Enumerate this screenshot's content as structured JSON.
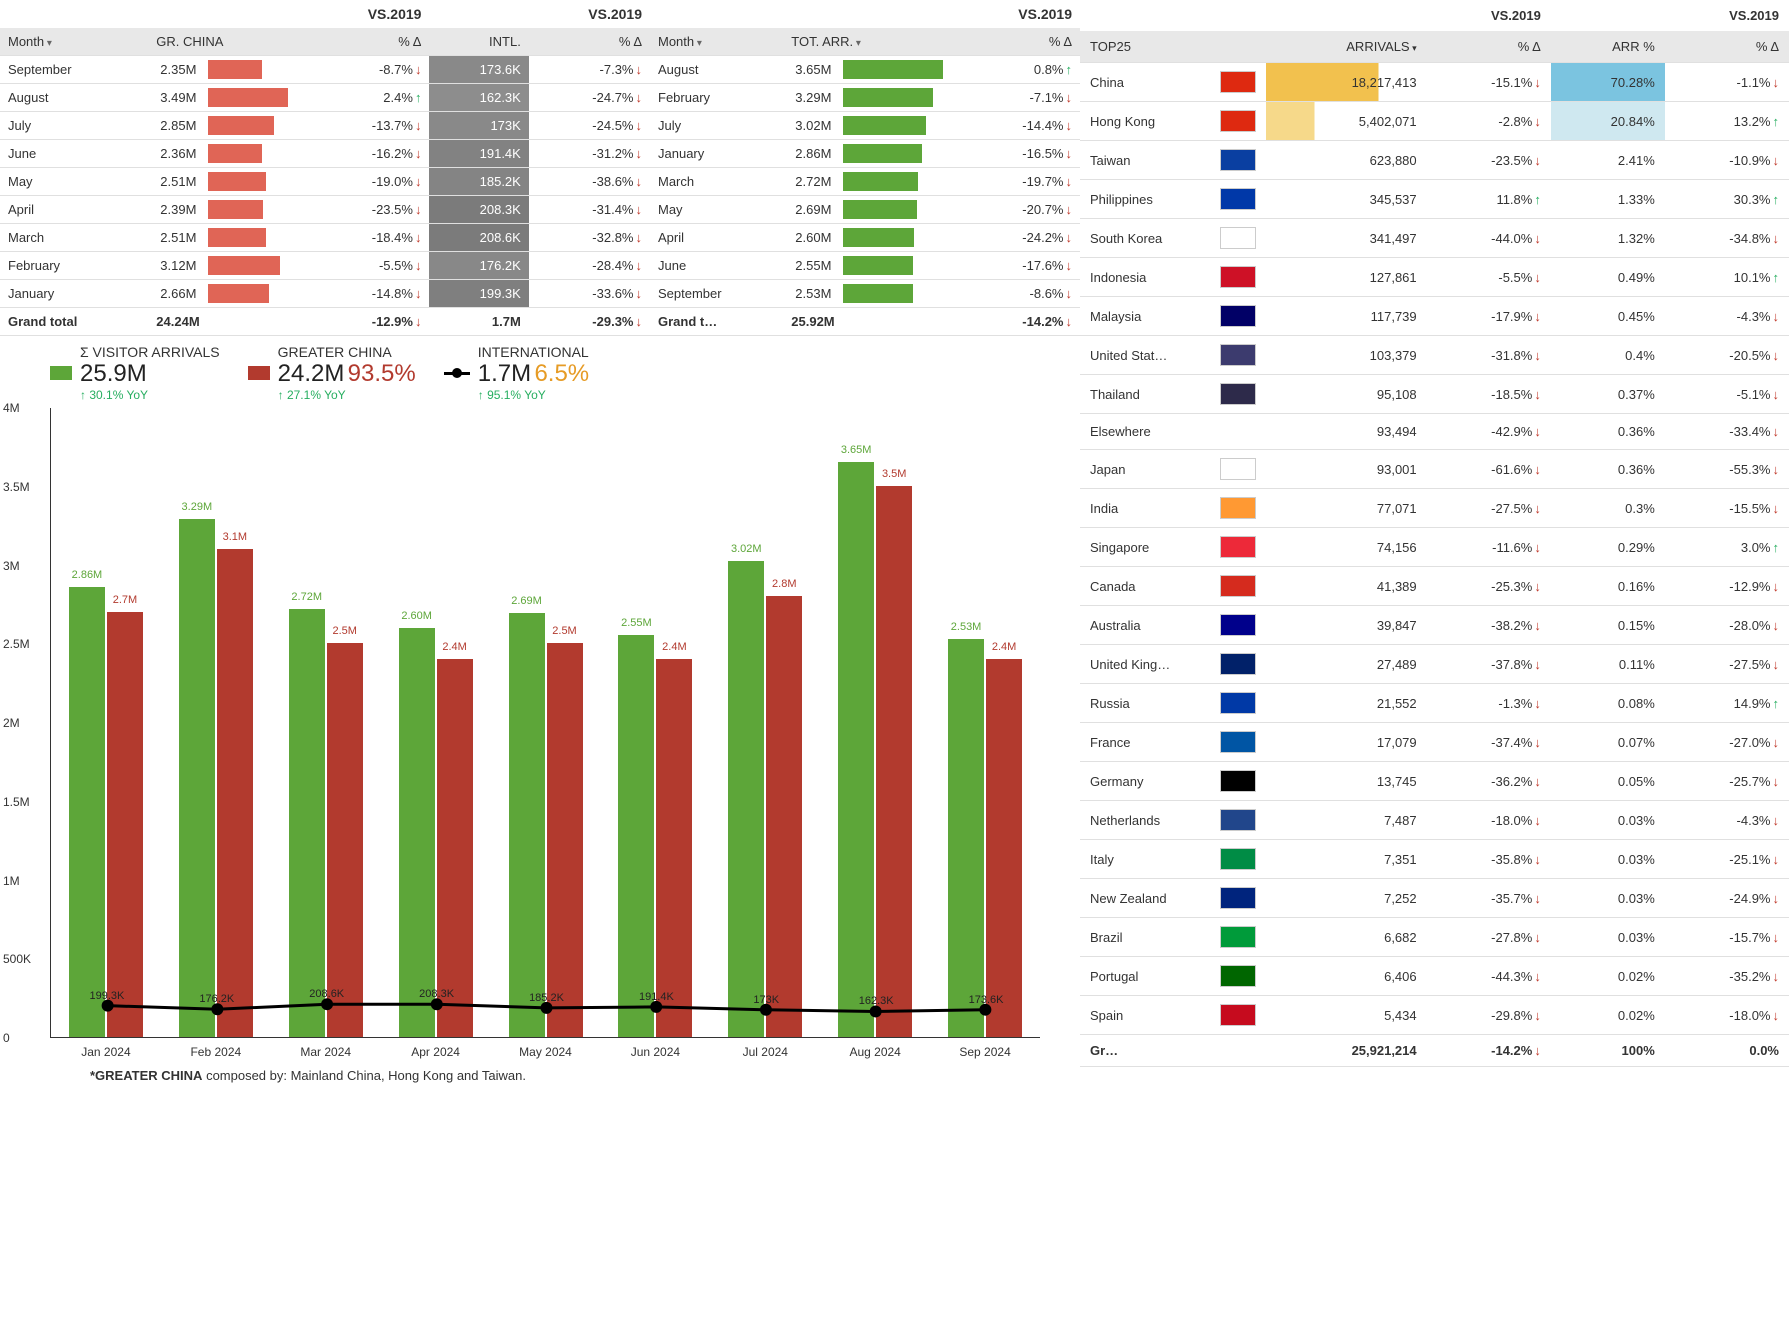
{
  "colors": {
    "green": "#5da639",
    "red": "#b23a2e",
    "dark_gray": "#7a7a7a",
    "black": "#000000",
    "orange": "#e69b25",
    "bar_red": "#e06556",
    "bar_green": "#5da639",
    "grid": "#e0e0e0"
  },
  "tables": {
    "vs_label": "VS.2019",
    "t1": {
      "headers": [
        "Month",
        "GR. CHINA",
        "% Δ",
        "INTL.",
        "% Δ"
      ],
      "max_china": 3.49,
      "max_intl": 208.6,
      "rows": [
        {
          "month": "September",
          "china": "2.35M",
          "china_v": 2.35,
          "china_d": "-8.7%",
          "china_dir": "down",
          "intl": "173.6K",
          "intl_v": 173.6,
          "intl_d": "-7.3%",
          "intl_dir": "down"
        },
        {
          "month": "August",
          "china": "3.49M",
          "china_v": 3.49,
          "china_d": "2.4%",
          "china_dir": "up",
          "intl": "162.3K",
          "intl_v": 162.3,
          "intl_d": "-24.7%",
          "intl_dir": "down"
        },
        {
          "month": "July",
          "china": "2.85M",
          "china_v": 2.85,
          "china_d": "-13.7%",
          "china_dir": "down",
          "intl": "173K",
          "intl_v": 173,
          "intl_d": "-24.5%",
          "intl_dir": "down"
        },
        {
          "month": "June",
          "china": "2.36M",
          "china_v": 2.36,
          "china_d": "-16.2%",
          "china_dir": "down",
          "intl": "191.4K",
          "intl_v": 191.4,
          "intl_d": "-31.2%",
          "intl_dir": "down"
        },
        {
          "month": "May",
          "china": "2.51M",
          "china_v": 2.51,
          "china_d": "-19.0%",
          "china_dir": "down",
          "intl": "185.2K",
          "intl_v": 185.2,
          "intl_d": "-38.6%",
          "intl_dir": "down"
        },
        {
          "month": "April",
          "china": "2.39M",
          "china_v": 2.39,
          "china_d": "-23.5%",
          "china_dir": "down",
          "intl": "208.3K",
          "intl_v": 208.3,
          "intl_d": "-31.4%",
          "intl_dir": "down"
        },
        {
          "month": "March",
          "china": "2.51M",
          "china_v": 2.51,
          "china_d": "-18.4%",
          "china_dir": "down",
          "intl": "208.6K",
          "intl_v": 208.6,
          "intl_d": "-32.8%",
          "intl_dir": "down"
        },
        {
          "month": "February",
          "china": "3.12M",
          "china_v": 3.12,
          "china_d": "-5.5%",
          "china_dir": "down",
          "intl": "176.2K",
          "intl_v": 176.2,
          "intl_d": "-28.4%",
          "intl_dir": "down"
        },
        {
          "month": "January",
          "china": "2.66M",
          "china_v": 2.66,
          "china_d": "-14.8%",
          "china_dir": "down",
          "intl": "199.3K",
          "intl_v": 199.3,
          "intl_d": "-33.6%",
          "intl_dir": "down"
        }
      ],
      "total": {
        "label": "Grand total",
        "china": "24.24M",
        "china_d": "-12.9%",
        "intl": "1.7M",
        "intl_d": "-29.3%"
      }
    },
    "t2": {
      "headers": [
        "Month",
        "TOT. ARR.",
        "% Δ"
      ],
      "max": 3.65,
      "rows": [
        {
          "month": "August",
          "tot": "3.65M",
          "v": 3.65,
          "d": "0.8%",
          "dir": "up"
        },
        {
          "month": "February",
          "tot": "3.29M",
          "v": 3.29,
          "d": "-7.1%",
          "dir": "down"
        },
        {
          "month": "July",
          "tot": "3.02M",
          "v": 3.02,
          "d": "-14.4%",
          "dir": "down"
        },
        {
          "month": "January",
          "tot": "2.86M",
          "v": 2.86,
          "d": "-16.5%",
          "dir": "down"
        },
        {
          "month": "March",
          "tot": "2.72M",
          "v": 2.72,
          "d": "-19.7%",
          "dir": "down"
        },
        {
          "month": "May",
          "tot": "2.69M",
          "v": 2.69,
          "d": "-20.7%",
          "dir": "down"
        },
        {
          "month": "April",
          "tot": "2.60M",
          "v": 2.6,
          "d": "-24.2%",
          "dir": "down"
        },
        {
          "month": "June",
          "tot": "2.55M",
          "v": 2.55,
          "d": "-17.6%",
          "dir": "down"
        },
        {
          "month": "September",
          "tot": "2.53M",
          "v": 2.53,
          "d": "-8.6%",
          "dir": "down"
        }
      ],
      "total": {
        "label": "Grand t…",
        "tot": "25.92M",
        "d": "-14.2%"
      }
    }
  },
  "chart": {
    "legend": {
      "visitors": "Σ VISITOR ARRIVALS",
      "china": "GREATER CHINA",
      "intl": "INTERNATIONAL"
    },
    "kpi_visitors": {
      "value": "25.9M",
      "yoy": "↑ 30.1% YoY",
      "color": "#27ae60"
    },
    "kpi_china": {
      "value": "24.2M",
      "pct": "93.5%",
      "pct_color": "#b23a2e",
      "yoy": "↑ 27.1% YoY"
    },
    "kpi_intl": {
      "value": "1.7M",
      "pct": "6.5%",
      "pct_color": "#e69b25",
      "yoy": "↑ 95.1% YoY"
    },
    "ymax": 4000000,
    "yticks": [
      {
        "v": 4000000,
        "label": "4M"
      },
      {
        "v": 3500000,
        "label": "3.5M"
      },
      {
        "v": 3000000,
        "label": "3M"
      },
      {
        "v": 2500000,
        "label": "2.5M"
      },
      {
        "v": 2000000,
        "label": "2M"
      },
      {
        "v": 1500000,
        "label": "1.5M"
      },
      {
        "v": 1000000,
        "label": "1M"
      },
      {
        "v": 500000,
        "label": "500K"
      },
      {
        "v": 0,
        "label": "0"
      }
    ],
    "months": [
      {
        "x": "Jan 2024",
        "vis": 2860000,
        "vis_l": "2.86M",
        "china": 2700000,
        "china_l": "2.7M",
        "intl": 199300,
        "intl_l": "199.3K"
      },
      {
        "x": "Feb 2024",
        "vis": 3290000,
        "vis_l": "3.29M",
        "china": 3100000,
        "china_l": "3.1M",
        "intl": 176200,
        "intl_l": "176.2K"
      },
      {
        "x": "Mar 2024",
        "vis": 2720000,
        "vis_l": "2.72M",
        "china": 2500000,
        "china_l": "2.5M",
        "intl": 208600,
        "intl_l": "208.6K"
      },
      {
        "x": "Apr 2024",
        "vis": 2600000,
        "vis_l": "2.60M",
        "china": 2400000,
        "china_l": "2.4M",
        "intl": 208300,
        "intl_l": "208.3K"
      },
      {
        "x": "May 2024",
        "vis": 2690000,
        "vis_l": "2.69M",
        "china": 2500000,
        "china_l": "2.5M",
        "intl": 185200,
        "intl_l": "185.2K"
      },
      {
        "x": "Jun 2024",
        "vis": 2550000,
        "vis_l": "2.55M",
        "china": 2400000,
        "china_l": "2.4M",
        "intl": 191400,
        "intl_l": "191.4K"
      },
      {
        "x": "Jul 2024",
        "vis": 3020000,
        "vis_l": "3.02M",
        "china": 2800000,
        "china_l": "2.8M",
        "intl": 173000,
        "intl_l": "173K"
      },
      {
        "x": "Aug 2024",
        "vis": 3650000,
        "vis_l": "3.65M",
        "china": 3500000,
        "china_l": "3.5M",
        "intl": 162300,
        "intl_l": "162.3K"
      },
      {
        "x": "Sep 2024",
        "vis": 2530000,
        "vis_l": "2.53M",
        "china": 2400000,
        "china_l": "2.4M",
        "intl": 173600,
        "intl_l": "173.6K"
      }
    ],
    "footnote": "*GREATER CHINA composed by: Mainland China, Hong Kong and Taiwan."
  },
  "top25": {
    "headers": [
      "TOP25",
      "",
      "ARRIVALS",
      "% Δ",
      "ARR %",
      "% Δ"
    ],
    "rows": [
      {
        "name": "China",
        "flag": "#de2910",
        "arr": "18,217,413",
        "hl": "hl-yellow",
        "d1": "-15.1%",
        "d1d": "down",
        "pct": "70.28%",
        "phl": "hl-blue",
        "d2": "-1.1%",
        "d2d": "down"
      },
      {
        "name": "Hong Kong",
        "flag": "#de2910",
        "arr": "5,402,071",
        "hl": "hl-yellow2",
        "d1": "-2.8%",
        "d1d": "down",
        "pct": "20.84%",
        "phl": "hl-blue2",
        "d2": "13.2%",
        "d2d": "up"
      },
      {
        "name": "Taiwan",
        "flag": "#0a3fa1",
        "arr": "623,880",
        "hl": "",
        "d1": "-23.5%",
        "d1d": "down",
        "pct": "2.41%",
        "phl": "",
        "d2": "-10.9%",
        "d2d": "down"
      },
      {
        "name": "Philippines",
        "flag": "#0038a8",
        "arr": "345,537",
        "hl": "",
        "d1": "11.8%",
        "d1d": "up",
        "pct": "1.33%",
        "phl": "",
        "d2": "30.3%",
        "d2d": "up"
      },
      {
        "name": "South Korea",
        "flag": "#ffffff",
        "arr": "341,497",
        "hl": "",
        "d1": "-44.0%",
        "d1d": "down",
        "pct": "1.32%",
        "phl": "",
        "d2": "-34.8%",
        "d2d": "down"
      },
      {
        "name": "Indonesia",
        "flag": "#ce1126",
        "arr": "127,861",
        "hl": "",
        "d1": "-5.5%",
        "d1d": "down",
        "pct": "0.49%",
        "phl": "",
        "d2": "10.1%",
        "d2d": "up"
      },
      {
        "name": "Malaysia",
        "flag": "#010066",
        "arr": "117,739",
        "hl": "",
        "d1": "-17.9%",
        "d1d": "down",
        "pct": "0.45%",
        "phl": "",
        "d2": "-4.3%",
        "d2d": "down"
      },
      {
        "name": "United Stat…",
        "flag": "#3c3b6e",
        "arr": "103,379",
        "hl": "",
        "d1": "-31.8%",
        "d1d": "down",
        "pct": "0.4%",
        "phl": "",
        "d2": "-20.5%",
        "d2d": "down"
      },
      {
        "name": "Thailand",
        "flag": "#2d2a4a",
        "arr": "95,108",
        "hl": "",
        "d1": "-18.5%",
        "d1d": "down",
        "pct": "0.37%",
        "phl": "",
        "d2": "-5.1%",
        "d2d": "down"
      },
      {
        "name": "Elsewhere",
        "flag": "",
        "arr": "93,494",
        "hl": "",
        "d1": "-42.9%",
        "d1d": "down",
        "pct": "0.36%",
        "phl": "",
        "d2": "-33.4%",
        "d2d": "down"
      },
      {
        "name": "Japan",
        "flag": "#ffffff",
        "arr": "93,001",
        "hl": "",
        "d1": "-61.6%",
        "d1d": "down",
        "pct": "0.36%",
        "phl": "",
        "d2": "-55.3%",
        "d2d": "down"
      },
      {
        "name": "India",
        "flag": "#ff9933",
        "arr": "77,071",
        "hl": "",
        "d1": "-27.5%",
        "d1d": "down",
        "pct": "0.3%",
        "phl": "",
        "d2": "-15.5%",
        "d2d": "down"
      },
      {
        "name": "Singapore",
        "flag": "#ed2939",
        "arr": "74,156",
        "hl": "",
        "d1": "-11.6%",
        "d1d": "down",
        "pct": "0.29%",
        "phl": "",
        "d2": "3.0%",
        "d2d": "up"
      },
      {
        "name": "Canada",
        "flag": "#d52b1e",
        "arr": "41,389",
        "hl": "",
        "d1": "-25.3%",
        "d1d": "down",
        "pct": "0.16%",
        "phl": "",
        "d2": "-12.9%",
        "d2d": "down"
      },
      {
        "name": "Australia",
        "flag": "#00008b",
        "arr": "39,847",
        "hl": "",
        "d1": "-38.2%",
        "d1d": "down",
        "pct": "0.15%",
        "phl": "",
        "d2": "-28.0%",
        "d2d": "down"
      },
      {
        "name": "United King…",
        "flag": "#012169",
        "arr": "27,489",
        "hl": "",
        "d1": "-37.8%",
        "d1d": "down",
        "pct": "0.11%",
        "phl": "",
        "d2": "-27.5%",
        "d2d": "down"
      },
      {
        "name": "Russia",
        "flag": "#0039a6",
        "arr": "21,552",
        "hl": "",
        "d1": "-1.3%",
        "d1d": "down",
        "pct": "0.08%",
        "phl": "",
        "d2": "14.9%",
        "d2d": "up"
      },
      {
        "name": "France",
        "flag": "#0055a4",
        "arr": "17,079",
        "hl": "",
        "d1": "-37.4%",
        "d1d": "down",
        "pct": "0.07%",
        "phl": "",
        "d2": "-27.0%",
        "d2d": "down"
      },
      {
        "name": "Germany",
        "flag": "#000000",
        "arr": "13,745",
        "hl": "",
        "d1": "-36.2%",
        "d1d": "down",
        "pct": "0.05%",
        "phl": "",
        "d2": "-25.7%",
        "d2d": "down"
      },
      {
        "name": "Netherlands",
        "flag": "#21468b",
        "arr": "7,487",
        "hl": "",
        "d1": "-18.0%",
        "d1d": "down",
        "pct": "0.03%",
        "phl": "",
        "d2": "-4.3%",
        "d2d": "down"
      },
      {
        "name": "Italy",
        "flag": "#008c45",
        "arr": "7,351",
        "hl": "",
        "d1": "-35.8%",
        "d1d": "down",
        "pct": "0.03%",
        "phl": "",
        "d2": "-25.1%",
        "d2d": "down"
      },
      {
        "name": "New Zealand",
        "flag": "#00247d",
        "arr": "7,252",
        "hl": "",
        "d1": "-35.7%",
        "d1d": "down",
        "pct": "0.03%",
        "phl": "",
        "d2": "-24.9%",
        "d2d": "down"
      },
      {
        "name": "Brazil",
        "flag": "#009b3a",
        "arr": "6,682",
        "hl": "",
        "d1": "-27.8%",
        "d1d": "down",
        "pct": "0.03%",
        "phl": "",
        "d2": "-15.7%",
        "d2d": "down"
      },
      {
        "name": "Portugal",
        "flag": "#006600",
        "arr": "6,406",
        "hl": "",
        "d1": "-44.3%",
        "d1d": "down",
        "pct": "0.02%",
        "phl": "",
        "d2": "-35.2%",
        "d2d": "down"
      },
      {
        "name": "Spain",
        "flag": "#c60b1e",
        "arr": "5,434",
        "hl": "",
        "d1": "-29.8%",
        "d1d": "down",
        "pct": "0.02%",
        "phl": "",
        "d2": "-18.0%",
        "d2d": "down"
      }
    ],
    "total": {
      "label": "Gr…",
      "arr": "25,921,214",
      "d1": "-14.2%",
      "pct": "100%",
      "d2": "0.0%"
    }
  }
}
